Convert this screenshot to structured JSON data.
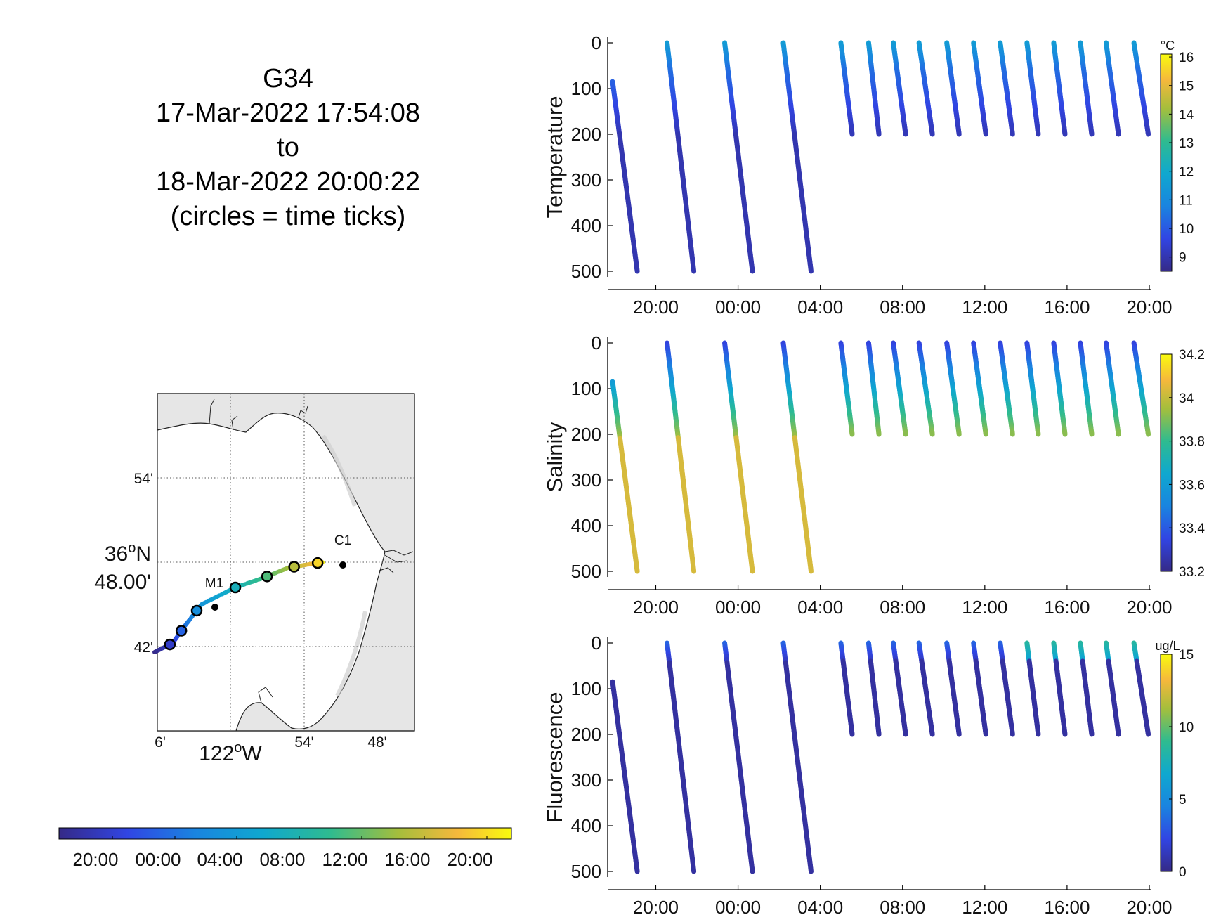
{
  "title": {
    "glider": "G34",
    "start": "17-Mar-2022 17:54:08",
    "to": "to",
    "end": "18-Mar-2022 20:00:22",
    "note": "(circles = time ticks)"
  },
  "time_axis": {
    "tick_labels": [
      "20:00",
      "00:00",
      "04:00",
      "08:00",
      "12:00",
      "16:00",
      "20:00"
    ]
  },
  "depth_axis": {
    "tick_labels": [
      "0",
      "100",
      "200",
      "300",
      "400",
      "500"
    ]
  },
  "map": {
    "lat_labels": [
      "54'",
      "42'"
    ],
    "lat_center_label_line1": "36",
    "lat_center_label_deg": "o",
    "lat_center_label_dir": "N",
    "lat_center_label_line2": "48.00'",
    "lon_labels": [
      "6'",
      "54'",
      "48'"
    ],
    "lon_center_label": "122",
    "lon_center_label_deg": "o",
    "lon_center_label_dir": "W",
    "stations": [
      {
        "name": "M1"
      },
      {
        "name": "C1"
      }
    ],
    "land_color": "#e6e6e6",
    "water_color": "#ffffff"
  },
  "time_colorbar": {
    "tick_labels": [
      "20:00",
      "00:00",
      "04:00",
      "08:00",
      "12:00",
      "16:00",
      "20:00"
    ]
  },
  "chart_data": [
    {
      "type": "scatter",
      "ylabel": "Temperature",
      "x_range_hours": [
        17.9,
        44.0
      ],
      "ylim": [
        0,
        500
      ],
      "y_reversed": true,
      "colorbar": {
        "unit": "°C",
        "ticks": [
          "16",
          "15",
          "14",
          "13",
          "12",
          "11",
          "10",
          "9"
        ],
        "range": [
          8.5,
          16.1
        ]
      },
      "profile_summary": "deep dives 0-500 m until ~04:00 then shallow dives 0-200 m",
      "surface_value": 11.5,
      "deep_value": 9.0
    },
    {
      "type": "scatter",
      "ylabel": "Salinity",
      "x_range_hours": [
        17.9,
        44.0
      ],
      "ylim": [
        0,
        500
      ],
      "y_reversed": true,
      "colorbar": {
        "unit": "",
        "ticks": [
          "34.2",
          "34",
          "33.8",
          "33.6",
          "33.4",
          "33.2"
        ],
        "range": [
          33.2,
          34.2
        ]
      },
      "surface_value": 33.35,
      "deep_value": 34.05
    },
    {
      "type": "scatter",
      "ylabel": "Fluorescence",
      "x_range_hours": [
        17.9,
        44.0
      ],
      "ylim": [
        0,
        500
      ],
      "y_reversed": true,
      "colorbar": {
        "unit": "ug/L",
        "ticks": [
          "15",
          "10",
          "5",
          "0"
        ],
        "range": [
          0,
          15
        ]
      },
      "surface_value": 3,
      "deep_value": 0.3
    }
  ],
  "dives": [
    {
      "t0": 17.9,
      "t1": 19.1,
      "zmax": 500,
      "z0": 85
    },
    {
      "t0": 20.55,
      "t1": 21.85,
      "zmax": 500,
      "z0": 0
    },
    {
      "t0": 23.35,
      "t1": 24.7,
      "zmax": 500,
      "z0": 0
    },
    {
      "t0": 26.2,
      "t1": 27.55,
      "zmax": 500,
      "z0": 0
    },
    {
      "t0": 29.0,
      "t1": 29.55,
      "zmax": 200,
      "z0": 0
    },
    {
      "t0": 30.35,
      "t1": 30.85,
      "zmax": 200,
      "z0": 0
    },
    {
      "t0": 31.55,
      "t1": 32.15,
      "zmax": 200,
      "z0": 0
    },
    {
      "t0": 32.8,
      "t1": 33.45,
      "zmax": 200,
      "z0": 0
    },
    {
      "t0": 34.15,
      "t1": 34.75,
      "zmax": 200,
      "z0": 0
    },
    {
      "t0": 35.45,
      "t1": 36.05,
      "zmax": 200,
      "z0": 0
    },
    {
      "t0": 36.75,
      "t1": 37.35,
      "zmax": 200,
      "z0": 0
    },
    {
      "t0": 38.05,
      "t1": 38.6,
      "zmax": 200,
      "z0": 0
    },
    {
      "t0": 39.35,
      "t1": 39.9,
      "zmax": 200,
      "z0": 0
    },
    {
      "t0": 40.65,
      "t1": 41.2,
      "zmax": 200,
      "z0": 0
    },
    {
      "t0": 41.9,
      "t1": 42.5,
      "zmax": 200,
      "z0": 0
    },
    {
      "t0": 43.25,
      "t1": 43.95,
      "zmax": 200,
      "z0": 0
    }
  ]
}
